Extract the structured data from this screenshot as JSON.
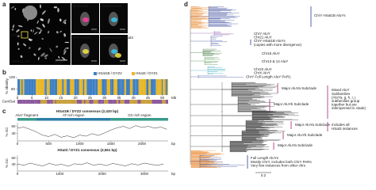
{
  "panel_labels": [
    "a",
    "b",
    "c",
    "d"
  ],
  "panel_a": {
    "chr_label": "ChrY",
    "cell_line": "HG002 LCL",
    "scale": "10 µm",
    "insets": [
      {
        "labels": [
          {
            "text": "DNA",
            "color": "#ffffff"
          },
          {
            "text": "CEN",
            "color": "#ff3ea0"
          }
        ],
        "scale": "1 µm"
      },
      {
        "labels": [
          {
            "text": "CEN",
            "color": "#ff3ea0"
          },
          {
            "text": "HSat1B",
            "color": "#36c8f0"
          }
        ],
        "scale": "1 µm"
      },
      {
        "labels": [
          {
            "text": "DNA",
            "color": "#ffffff"
          },
          {
            "text": "HSat3",
            "color": "#f5e642"
          }
        ],
        "scale": "1 µm"
      },
      {
        "labels": [
          {
            "text": "CEN",
            "color": "#ff3ea0"
          },
          {
            "text": "HSat1B",
            "color": "#36c8f0"
          },
          {
            "text": "HSat3",
            "color": "#f5e642"
          }
        ],
        "scale": "1 µm"
      }
    ]
  },
  "panel_b": {
    "legend": [
      {
        "name": "HSat1B / DYZ2",
        "color": "#3d7fc4"
      },
      {
        "name": "HSat3 / DYZ1",
        "color": "#e8b627"
      }
    ],
    "ylabel": "% Identity",
    "ylim": [
      70,
      100
    ],
    "yticks": [
      100,
      80
    ],
    "xlim": [
      0,
      52
    ],
    "xticks": [
      0,
      5,
      10,
      15,
      20,
      25,
      30,
      35,
      40,
      45,
      50
    ],
    "xunit": "Mb",
    "track_label": "Cen/Sat"
  },
  "panel_c": [
    {
      "title": "HSat1B / DYZ2 consensus (2,420 bp)",
      "regions": [
        {
          "name": "AluY fragment",
          "start": 0,
          "end": 300,
          "color": "#3a9c8c"
        },
        {
          "name": "AT-rich region",
          "start": 300,
          "end": 1500,
          "color": "#2e7fa6"
        },
        {
          "name": "GC-rich region",
          "start": 1500,
          "end": 2420,
          "color": "#3a9c8c"
        }
      ],
      "ylabel": "% GC",
      "ylim": [
        20,
        70
      ],
      "yticks": [
        60,
        40
      ],
      "xlim": [
        0,
        2420
      ],
      "xticks": [
        0,
        500,
        1000,
        1500,
        2000
      ],
      "xunit": "bp",
      "x": [
        0,
        100,
        200,
        300,
        400,
        500,
        600,
        700,
        800,
        900,
        1000,
        1100,
        1200,
        1300,
        1400,
        1500,
        1600,
        1700,
        1800,
        1900,
        2000,
        2100,
        2200,
        2300,
        2400
      ],
      "gc": [
        55,
        58,
        52,
        45,
        36,
        32,
        38,
        30,
        34,
        29,
        36,
        33,
        40,
        35,
        42,
        50,
        56,
        60,
        54,
        62,
        57,
        60,
        55,
        58,
        52
      ]
    },
    {
      "title": "HSat3 / DYZ1 consensus (3,561 bp)",
      "ylabel": "% GC",
      "ylim": [
        20,
        70
      ],
      "yticks": [
        60,
        40
      ],
      "xlim": [
        0,
        3561
      ],
      "xticks": [
        0,
        1000,
        2000,
        3000
      ],
      "xunit": "bp",
      "x": [
        0,
        150,
        300,
        450,
        600,
        750,
        900,
        1050,
        1200,
        1350,
        1500,
        1650,
        1800,
        1950,
        2100,
        2250,
        2400,
        2550,
        2700,
        2850,
        3000,
        3150,
        3300,
        3450
      ],
      "gc": [
        42,
        38,
        45,
        40,
        36,
        44,
        39,
        41,
        35,
        43,
        40,
        46,
        38,
        42,
        37,
        44,
        40,
        36,
        43,
        39,
        45,
        41,
        38,
        42
      ]
    }
  ],
  "panel_d": {
    "scale": "0.2",
    "labels": [
      {
        "lines": [
          "ChrY HSat1B AluYs"
        ],
        "color": "#2c3f95"
      },
      {
        "lines": [
          "ChrY AluY"
        ],
        "color": "#7b3fa0"
      },
      {
        "lines": [
          "Chr21 AluY"
        ],
        "color": "#a2246b"
      },
      {
        "lines": [
          "ChrY HSat1B AluYs",
          "(copies with more divergence)"
        ],
        "color": "#2c3f95"
      },
      {
        "lines": [
          "Chr15 AluY"
        ],
        "color": "#2f6b2f"
      },
      {
        "lines": [
          "Chr13 & 14 AluY"
        ],
        "color": "#3a8a3a"
      },
      {
        "lines": [
          "Chr22 AluY"
        ],
        "color": "#2aa3b5"
      },
      {
        "lines": [
          "ChrX AluY"
        ],
        "color": "#6cc3cf"
      },
      {
        "lines": [
          "ChrY Full Length AluY PAR1"
        ],
        "color": "#2c3f95"
      },
      {
        "lines": [
          "Major AluYa Subclade"
        ],
        "color": "#a2246b"
      },
      {
        "lines": [
          "Major AluYb Subclade"
        ],
        "color": "#a2246b"
      },
      {
        "lines": [
          "Mixed AluY",
          "Subfamilies",
          "(AluYa, g, h, i, j",
          "subfamilies group",
          "together but are",
          "interspersed in clade)"
        ],
        "color": "#a2246b"
      },
      {
        "lines": [
          "Major AluYa Subclade"
        ],
        "color": "#a2246b"
      },
      {
        "lines": [
          "Includes all",
          "HSat3 instances"
        ],
        "color": "#a2246b"
      },
      {
        "lines": [
          "Major AluYb Subclade"
        ],
        "color": "#a2246b"
      },
      {
        "lines": [
          "Major AluYa Subclade"
        ],
        "color": "#a2246b"
      },
      {
        "lines": [
          "Full Length AluYs",
          "Mostly ChrY, includes both ChrY PARs",
          "Very few instances from other chrs"
        ],
        "color": "#2c3f95"
      }
    ]
  }
}
